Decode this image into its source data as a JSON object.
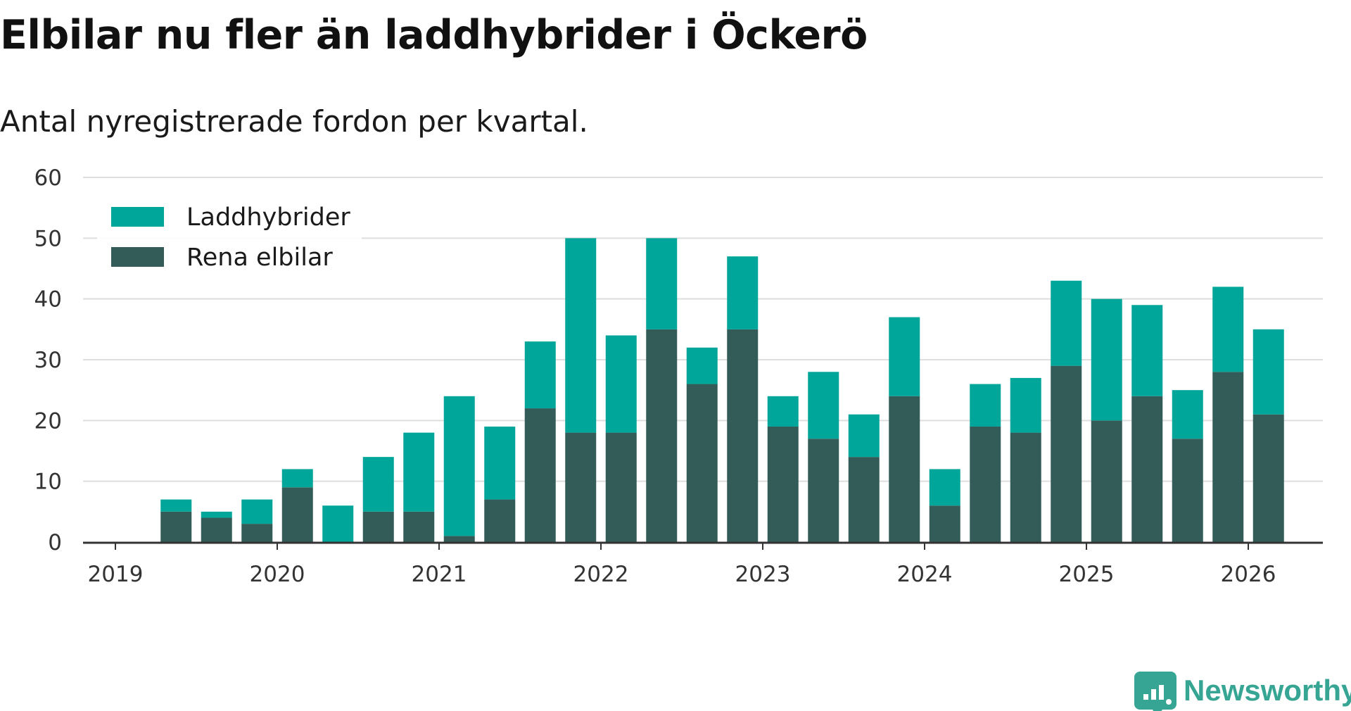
{
  "title": "Elbilar nu fler än laddhybrider i Öckerö",
  "subtitle": "Antal nyregistrerade fordon per kvartal.",
  "brand": {
    "name": "Newsworthy",
    "color": "#36a593"
  },
  "chart_data": {
    "type": "bar",
    "stacked": true,
    "categories": [
      "2019 Q2",
      "2019 Q3",
      "2019 Q4",
      "2020 Q1",
      "2020 Q2",
      "2020 Q3",
      "2020 Q4",
      "2021 Q1",
      "2021 Q2",
      "2021 Q3",
      "2021 Q4",
      "2022 Q1",
      "2022 Q2",
      "2022 Q3",
      "2022 Q4",
      "2023 Q1",
      "2023 Q2",
      "2023 Q3",
      "2023 Q4",
      "2024 Q1",
      "2024 Q2",
      "2024 Q3",
      "2024 Q4",
      "2025 Q1",
      "2025 Q2",
      "2025 Q3",
      "2025 Q4",
      "2026 Q1"
    ],
    "series": [
      {
        "name": "Rena elbilar",
        "color": "#335c59",
        "values": [
          5,
          4,
          3,
          9,
          0,
          5,
          5,
          1,
          7,
          22,
          18,
          18,
          35,
          26,
          35,
          19,
          17,
          14,
          24,
          6,
          19,
          18,
          29,
          20,
          24,
          17,
          28,
          21
        ]
      },
      {
        "name": "Laddhybrider",
        "color": "#00a699",
        "values": [
          2,
          1,
          4,
          3,
          6,
          9,
          13,
          23,
          12,
          11,
          32,
          16,
          15,
          6,
          12,
          5,
          11,
          7,
          13,
          6,
          7,
          9,
          14,
          20,
          15,
          8,
          14,
          14
        ]
      }
    ],
    "legend_order": [
      "Laddhybrider",
      "Rena elbilar"
    ],
    "legend_position": "top-left",
    "x_ticks": [
      "2019",
      "2020",
      "2021",
      "2022",
      "2023",
      "2024",
      "2025",
      "2026"
    ],
    "y_ticks": [
      0,
      10,
      20,
      30,
      40,
      50,
      60
    ],
    "ylim": [
      0,
      60
    ],
    "xlabel": "",
    "ylabel": "",
    "grid": true
  }
}
